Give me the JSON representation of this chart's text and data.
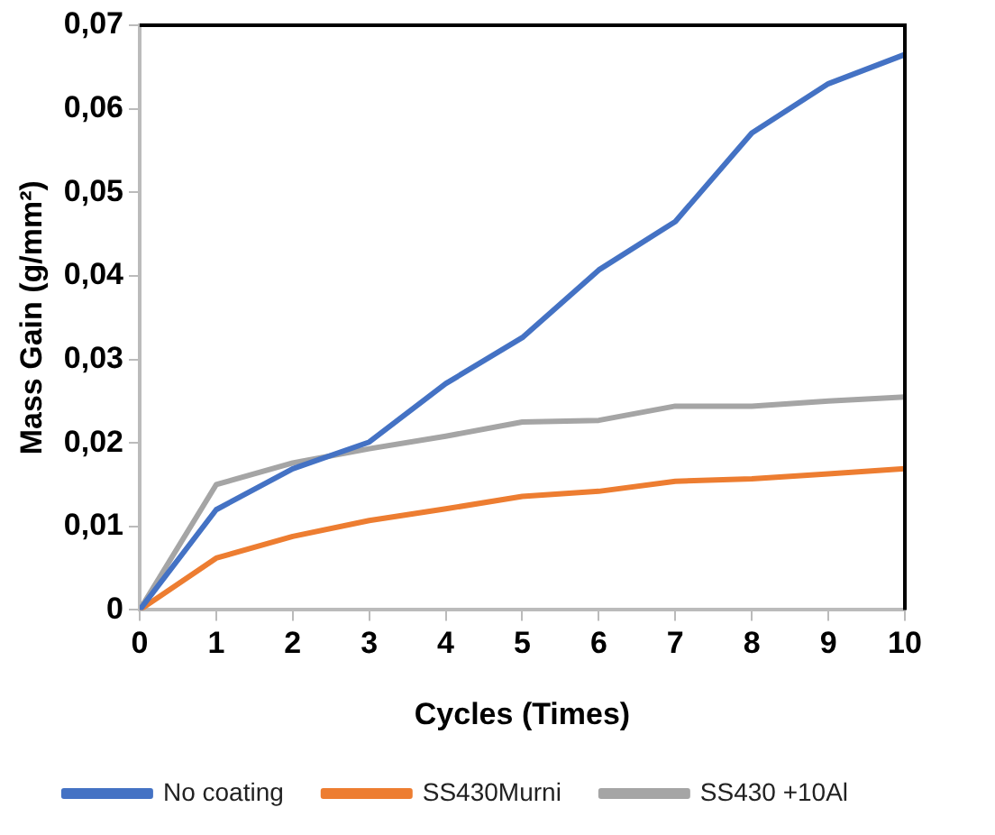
{
  "chart_data": {
    "type": "line",
    "xlabel": "Cycles (Times)",
    "ylabel": "Mass Gain (g/mm²)",
    "x": [
      0,
      1,
      2,
      3,
      4,
      5,
      6,
      7,
      8,
      9,
      10
    ],
    "series": [
      {
        "name": "No coating",
        "color": "#4472c4",
        "values": [
          0,
          0.012,
          0.0169,
          0.0201,
          0.0271,
          0.0326,
          0.0407,
          0.0465,
          0.0571,
          0.063,
          0.0665
        ]
      },
      {
        "name": "SS430Murni",
        "color": "#ed7d31",
        "values": [
          0,
          0.0062,
          0.0088,
          0.0107,
          0.0121,
          0.0136,
          0.0142,
          0.0154,
          0.0157,
          0.0163,
          0.0169
        ]
      },
      {
        "name": "SS430 +10Al",
        "color": "#a5a5a5",
        "values": [
          0,
          0.015,
          0.0176,
          0.0193,
          0.0208,
          0.0225,
          0.0227,
          0.0244,
          0.0244,
          0.025,
          0.0255
        ]
      }
    ],
    "xlim": [
      0,
      10
    ],
    "xticks": [
      0,
      1,
      2,
      3,
      4,
      5,
      6,
      7,
      8,
      9,
      10
    ],
    "ylim": [
      0,
      0.07
    ],
    "yticks": [
      0,
      {
        "value": 0.01,
        "label": "0,01"
      },
      {
        "value": 0.02,
        "label": "0,02"
      },
      {
        "value": 0.03,
        "label": "0,03"
      },
      {
        "value": 0.04,
        "label": "0,04"
      },
      {
        "value": 0.05,
        "label": "0,05"
      },
      {
        "value": 0.06,
        "label": "0,06"
      },
      {
        "value": 0.07,
        "label": "0,07"
      }
    ],
    "grid": false,
    "legend": "bottom",
    "marker": "none",
    "line_style": "solid"
  }
}
